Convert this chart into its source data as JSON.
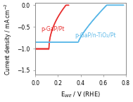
{
  "title": "",
  "xlabel": "E$_{WE}$ / V (RHE)",
  "ylabel": "Current density / mA cm$^{-2}$",
  "xlim": [
    0.0,
    0.8
  ],
  "ylim": [
    -1.6,
    0.05
  ],
  "yticks": [
    0.0,
    -0.5,
    -1.0,
    -1.5
  ],
  "xticks": [
    0.0,
    0.2,
    0.4,
    0.6,
    0.8
  ],
  "red_label": "p-GaP/Pt",
  "blue_label": "p-GaP/n-TiO₂/Pt",
  "red_color": "#e83030",
  "blue_color": "#5bb8e8",
  "bg_color": "#f0f0f0"
}
